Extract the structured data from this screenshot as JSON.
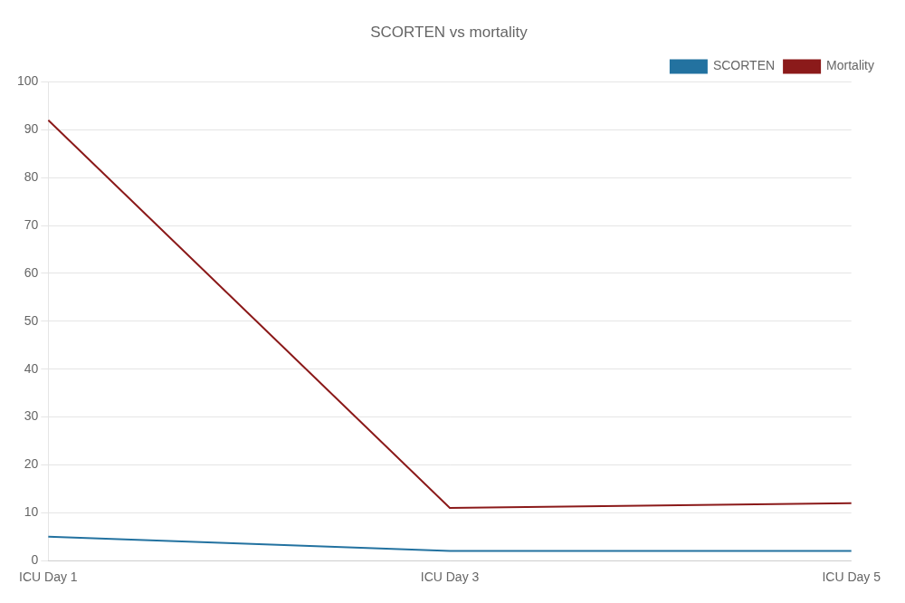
{
  "chart_data": {
    "type": "line",
    "title": "SCORTEN vs mortality",
    "categories": [
      "ICU Day 1",
      "ICU Day 3",
      "ICU Day 5"
    ],
    "series": [
      {
        "name": "SCORTEN",
        "color": "#2372a0",
        "values": [
          5,
          2,
          2
        ]
      },
      {
        "name": "Mortality",
        "color": "#8b1a1a",
        "values": [
          92,
          11,
          12
        ]
      }
    ],
    "ylim": [
      0,
      100
    ],
    "yticks": [
      0,
      10,
      20,
      30,
      40,
      50,
      60,
      70,
      80,
      90,
      100
    ],
    "grid": true,
    "legend": "upper right"
  }
}
